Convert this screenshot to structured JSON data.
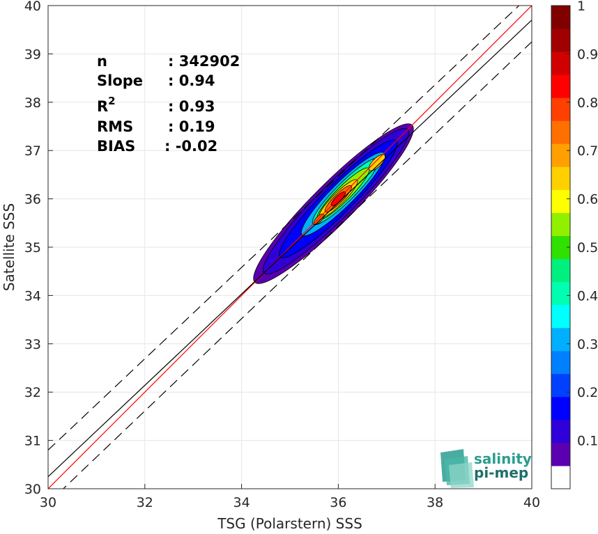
{
  "chart_data": {
    "type": "heatmap",
    "xlabel": "TSG (Polarstern) SSS",
    "ylabel": "Satellite SSS",
    "xlim": [
      30,
      40
    ],
    "ylim": [
      30,
      40
    ],
    "xticks": [
      "30",
      "32",
      "34",
      "36",
      "38",
      "40"
    ],
    "yticks": [
      "30",
      "31",
      "32",
      "33",
      "34",
      "35",
      "36",
      "37",
      "38",
      "39",
      "40"
    ],
    "grid": true,
    "colorbar": {
      "range": [
        0,
        1
      ],
      "ticks": [
        "0.1",
        "0.2",
        "0.3",
        "0.4",
        "0.5",
        "0.6",
        "0.7",
        "0.8",
        "0.9",
        "1"
      ],
      "colors": [
        "#ffffff",
        "#5b00b0",
        "#3000d8",
        "#0000ff",
        "#0040ff",
        "#0080ff",
        "#00b0ff",
        "#00ffff",
        "#00ffb0",
        "#00f080",
        "#30e000",
        "#90f000",
        "#ffff00",
        "#ffd000",
        "#ffa000",
        "#ff7000",
        "#ff4000",
        "#ff0000",
        "#d00000",
        "#a00000",
        "#800000"
      ]
    },
    "lines": [
      {
        "style": "one-to-one",
        "color": "#ff0000",
        "x": [
          30,
          40
        ],
        "y": [
          30,
          40
        ]
      },
      {
        "style": "regression",
        "color": "#000000",
        "x": [
          30,
          40
        ],
        "y": [
          30.25,
          39.7
        ]
      },
      {
        "style": "upper-bound-dashed",
        "color": "#000000",
        "x": [
          30,
          40
        ],
        "y": [
          30.8,
          40.25
        ]
      },
      {
        "style": "lower-bound-dashed",
        "color": "#000000",
        "x": [
          30,
          40
        ],
        "y": [
          29.7,
          39.25
        ]
      }
    ],
    "density_levels": [
      {
        "level": 0.05,
        "color": "#5b00b0",
        "center": [
          35.9,
          35.9
        ],
        "length": 2.3,
        "width": 0.42
      },
      {
        "level": 0.1,
        "color": "#3000d8",
        "center": [
          35.95,
          35.95
        ],
        "length": 2.1,
        "width": 0.36
      },
      {
        "level": 0.15,
        "color": "#0000ff",
        "center": [
          36.0,
          36.0
        ],
        "length": 1.7,
        "width": 0.3
      },
      {
        "level": 0.3,
        "color": "#00b0ff",
        "center": [
          36.1,
          36.1
        ],
        "length": 1.2,
        "width": 0.24
      },
      {
        "level": 0.45,
        "color": "#00ffb0",
        "center": [
          36.15,
          36.15
        ],
        "length": 0.95,
        "width": 0.19
      },
      {
        "level": 0.6,
        "color": "#90f000",
        "center": [
          36.1,
          36.1
        ],
        "length": 0.75,
        "width": 0.15
      },
      {
        "level": 0.7,
        "color": "#ffd000",
        "center": [
          36.0,
          36.0
        ],
        "length": 0.55,
        "width": 0.12
      },
      {
        "level": 0.8,
        "color": "#ff7000",
        "center": [
          36.0,
          36.0
        ],
        "length": 0.38,
        "width": 0.09
      },
      {
        "level": 0.9,
        "color": "#ff0000",
        "center": [
          36.0,
          36.0
        ],
        "length": 0.2,
        "width": 0.06
      },
      {
        "level": 0.75,
        "color": "#ffd000",
        "center": [
          36.8,
          36.75
        ],
        "length": 0.22,
        "width": 0.09
      },
      {
        "level": 0.8,
        "color": "#ff7000",
        "center": [
          35.6,
          35.58
        ],
        "length": 0.14,
        "width": 0.06
      }
    ],
    "stats": [
      {
        "label": "n",
        "value": ": 342902"
      },
      {
        "label": "Slope",
        "value": ": 0.94"
      },
      {
        "label": "R",
        "sup": "2",
        "value": ": 0.93"
      },
      {
        "label": "RMS",
        "value": ": 0.19"
      },
      {
        "label": "BIAS",
        "value": ": -0.02"
      }
    ]
  },
  "logo": {
    "line1": "salinity",
    "line2": "pi-mep"
  }
}
